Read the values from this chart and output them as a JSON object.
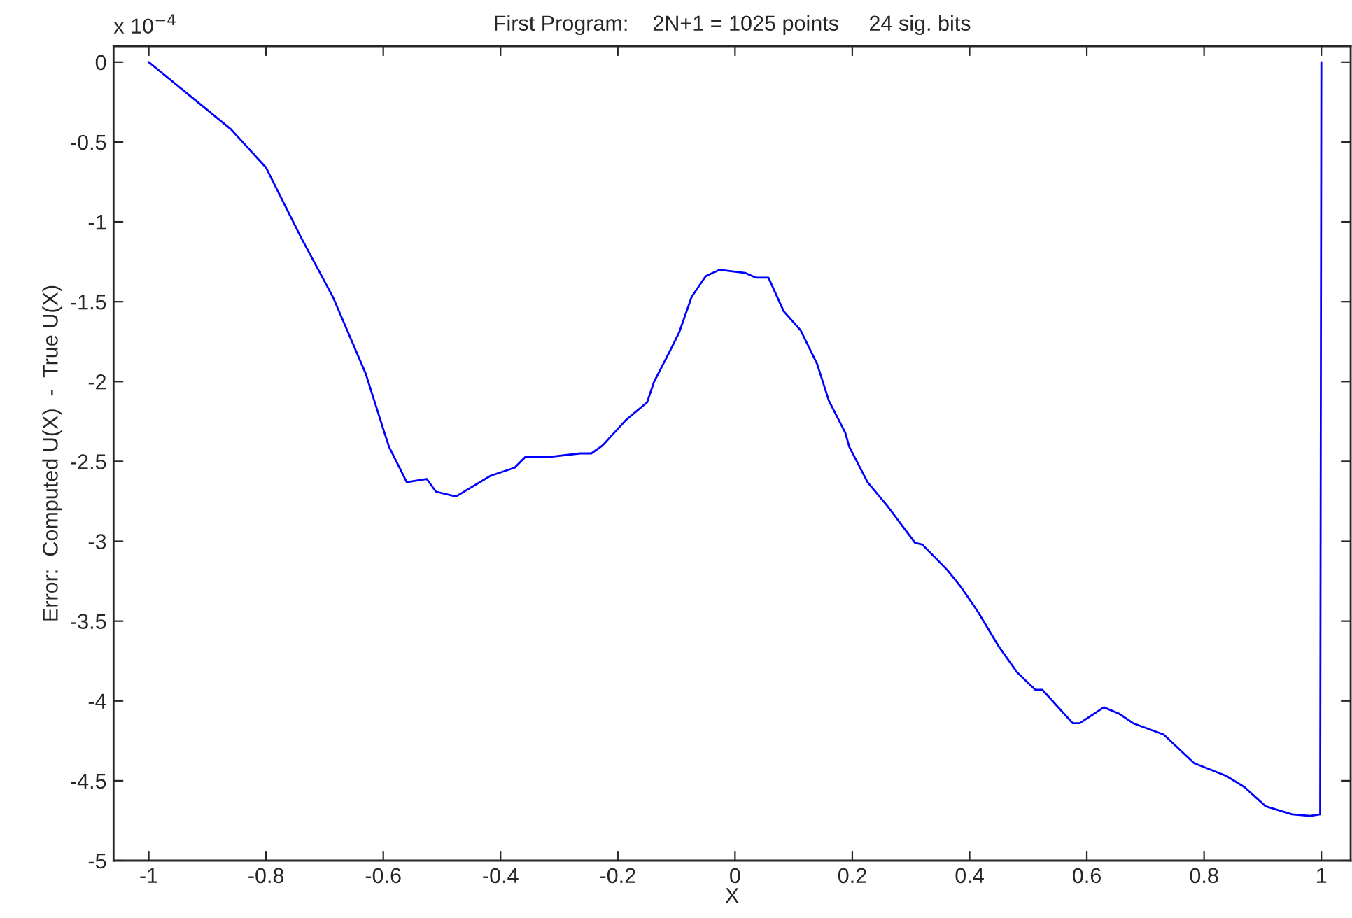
{
  "chart_data": {
    "type": "line",
    "title": "First Program:    2N+1 = 1025 points     24 sig. bits",
    "xlabel": "X",
    "ylabel": "Error:  Computed U(X)  -  True U(X)",
    "annotations": [
      "x 10$^{−4}$"
    ],
    "xlim": [
      -1.06,
      1.05
    ],
    "ylim": [
      -5,
      0.1
    ],
    "xticks": [
      {
        "value": -1,
        "label": "-1"
      },
      {
        "value": -0.8,
        "label": "-0.8"
      },
      {
        "value": -0.6,
        "label": "-0.6"
      },
      {
        "value": -0.4,
        "label": "-0.4"
      },
      {
        "value": -0.2,
        "label": "-0.2"
      },
      0,
      0.2,
      0.4,
      0.6,
      0.8,
      1
    ],
    "yticks": [
      {
        "value": -5,
        "label": "-5"
      },
      {
        "value": -4.5,
        "label": "-4.5"
      },
      {
        "value": -4,
        "label": "-4"
      },
      {
        "value": -3.5,
        "label": "-3.5"
      },
      {
        "value": -3,
        "label": "-3"
      },
      {
        "value": -2.5,
        "label": "-2.5"
      },
      {
        "value": -2,
        "label": "-2"
      },
      {
        "value": -1.5,
        "label": "-1.5"
      },
      {
        "value": -1,
        "label": "-1"
      },
      {
        "value": -0.5,
        "label": "-0.5"
      },
      0
    ],
    "grid": false,
    "legend": false,
    "marker": "none",
    "line_style": "solid",
    "series": [
      {
        "color": "#0000ff",
        "x": [
          -1,
          -0.94,
          -0.86,
          -0.8,
          -0.74,
          -0.686,
          -0.63,
          -0.598,
          -0.59,
          -0.56,
          -0.526,
          -0.51,
          -0.476,
          -0.417,
          -0.376,
          -0.357,
          -0.312,
          -0.264,
          -0.245,
          -0.226,
          -0.186,
          -0.15,
          -0.138,
          -0.114,
          -0.095,
          -0.074,
          -0.05,
          -0.026,
          0.017,
          0.036,
          0.057,
          0.083,
          0.112,
          0.14,
          0.16,
          0.188,
          0.195,
          0.226,
          0.26,
          0.307,
          0.319,
          0.362,
          0.386,
          0.414,
          0.45,
          0.481,
          0.512,
          0.524,
          0.576,
          0.588,
          0.629,
          0.655,
          0.679,
          0.731,
          0.783,
          0.838,
          0.869,
          0.905,
          0.95,
          0.981,
          0.998,
          1
        ],
        "values": [
          0,
          -0.18,
          -0.42,
          -0.66,
          -1.1,
          -1.47,
          -1.95,
          -2.32,
          -2.41,
          -2.63,
          -2.61,
          -2.69,
          -2.72,
          -2.59,
          -2.54,
          -2.47,
          -2.47,
          -2.45,
          -2.45,
          -2.4,
          -2.24,
          -2.13,
          -2.0,
          -1.83,
          -1.69,
          -1.47,
          -1.34,
          -1.3,
          -1.32,
          -1.35,
          -1.35,
          -1.56,
          -1.68,
          -1.89,
          -2.12,
          -2.32,
          -2.41,
          -2.63,
          -2.78,
          -3.01,
          -3.02,
          -3.18,
          -3.29,
          -3.44,
          -3.66,
          -3.82,
          -3.93,
          -3.93,
          -4.14,
          -4.14,
          -4.04,
          -4.08,
          -4.14,
          -4.21,
          -4.39,
          -4.47,
          -4.54,
          -4.66,
          -4.71,
          -4.72,
          -4.71,
          0
        ]
      }
    ]
  }
}
